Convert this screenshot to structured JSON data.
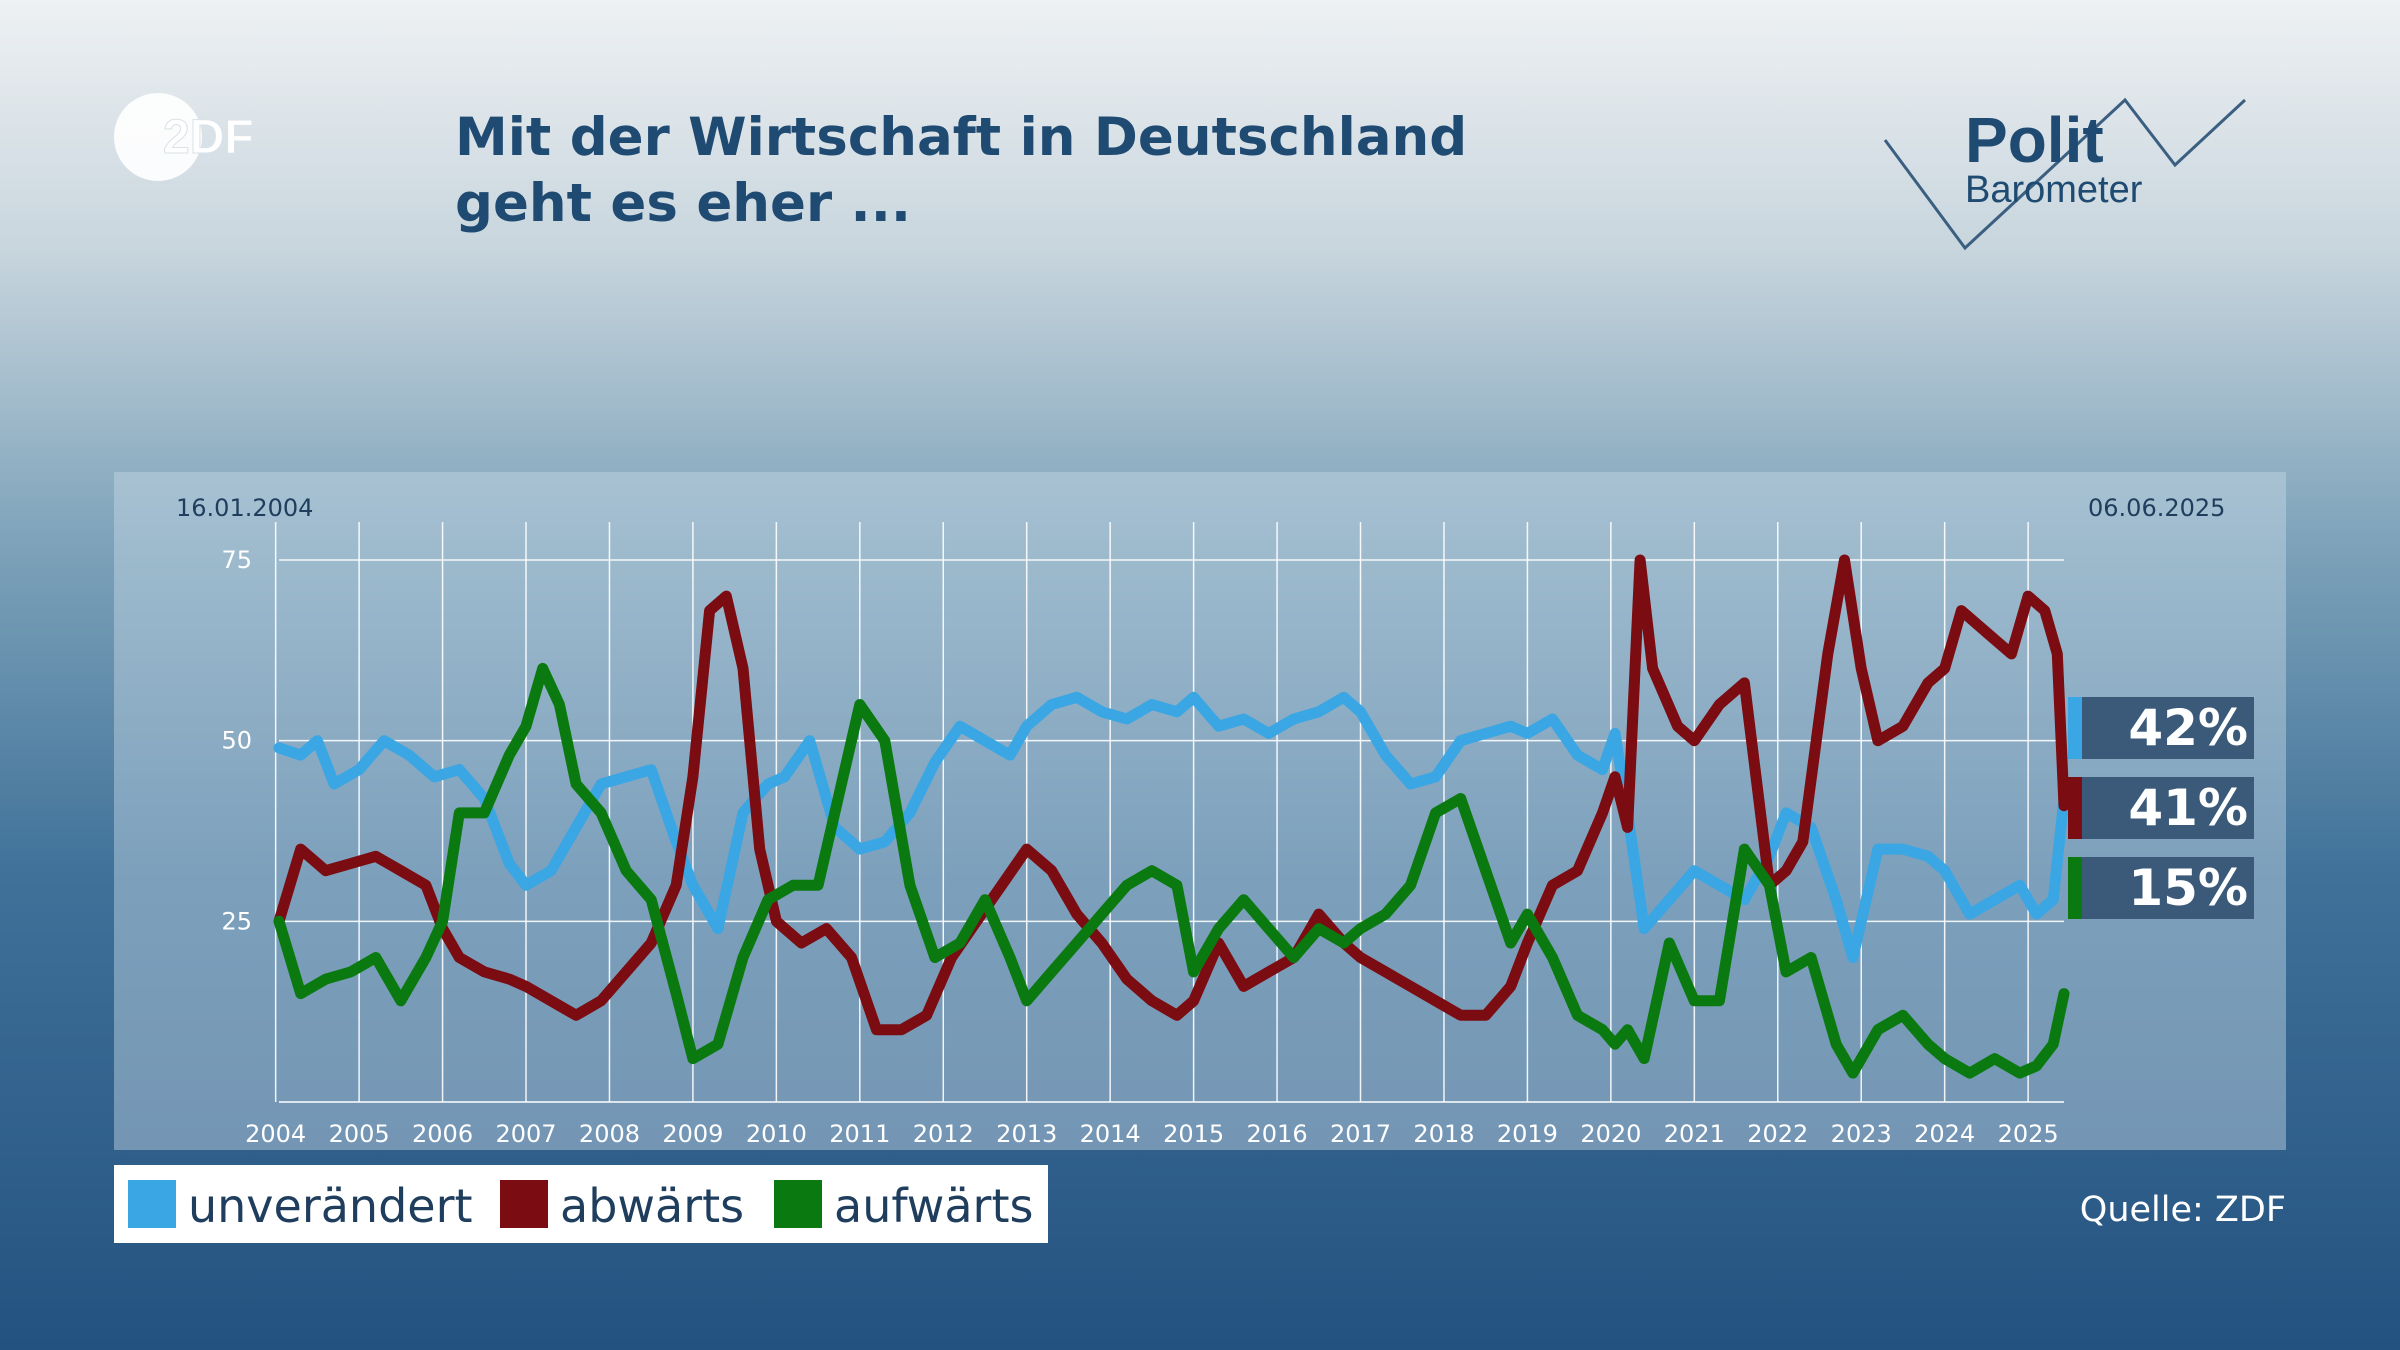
{
  "logo_text": "2DF",
  "title_line1": "Mit der Wirtschaft in Deutschland",
  "title_line2": "geht es eher ...",
  "polit_top": "Polit",
  "polit_bottom": "Barometer",
  "date_start": "16.01.2004",
  "date_end": "06.06.2025",
  "source": "Quelle: ZDF",
  "colors": {
    "unveraendert": "#3aa6e4",
    "abwaerts": "#7a0c12",
    "aufwaerts": "#0a7a10"
  },
  "legend": [
    {
      "label": "unverändert",
      "color": "#3aa6e4"
    },
    {
      "label": "abwärts",
      "color": "#7a0c12"
    },
    {
      "label": "aufwärts",
      "color": "#0a7a10"
    }
  ],
  "current": [
    {
      "label": "42%",
      "color": "#3aa6e4"
    },
    {
      "label": "41%",
      "color": "#7a0c12"
    },
    {
      "label": "15%",
      "color": "#0a7a10"
    }
  ],
  "chart_data": {
    "type": "line",
    "title": "Mit der Wirtschaft in Deutschland geht es eher ...",
    "xlabel": "",
    "ylabel": "",
    "xlim": [
      2004.04,
      2025.43
    ],
    "ylim": [
      0,
      75
    ],
    "yticks": [
      25,
      50,
      75
    ],
    "xticks": [
      "2004",
      "2005",
      "2006",
      "2007",
      "2008",
      "2009",
      "2010",
      "2011",
      "2012",
      "2013",
      "2014",
      "2015",
      "2016",
      "2017",
      "2018",
      "2019",
      "2020",
      "2021",
      "2022",
      "2023",
      "2024",
      "2025"
    ],
    "grid": true,
    "legend_position": "bottom-left",
    "series": [
      {
        "name": "unverändert",
        "color": "#3aa6e4",
        "x": [
          2004.04,
          2004.3,
          2004.5,
          2004.7,
          2005.0,
          2005.3,
          2005.6,
          2005.9,
          2006.2,
          2006.5,
          2006.8,
          2007.0,
          2007.3,
          2007.6,
          2007.9,
          2008.2,
          2008.5,
          2008.8,
          2009.0,
          2009.3,
          2009.6,
          2009.9,
          2010.1,
          2010.4,
          2010.7,
          2011.0,
          2011.3,
          2011.6,
          2011.9,
          2012.2,
          2012.5,
          2012.8,
          2013.0,
          2013.3,
          2013.6,
          2013.9,
          2014.2,
          2014.5,
          2014.8,
          2015.0,
          2015.3,
          2015.6,
          2015.9,
          2016.2,
          2016.5,
          2016.8,
          2017.0,
          2017.3,
          2017.6,
          2017.9,
          2018.2,
          2018.5,
          2018.8,
          2019.0,
          2019.3,
          2019.6,
          2019.9,
          2020.05,
          2020.2,
          2020.4,
          2020.7,
          2021.0,
          2021.3,
          2021.6,
          2021.9,
          2022.1,
          2022.4,
          2022.7,
          2022.9,
          2023.2,
          2023.5,
          2023.8,
          2024.0,
          2024.3,
          2024.6,
          2024.9,
          2025.1,
          2025.3,
          2025.43
        ],
        "y": [
          49,
          48,
          50,
          44,
          46,
          50,
          48,
          45,
          46,
          42,
          33,
          30,
          32,
          38,
          44,
          45,
          46,
          36,
          30,
          24,
          40,
          44,
          45,
          50,
          38,
          35,
          36,
          40,
          47,
          52,
          50,
          48,
          52,
          55,
          56,
          54,
          53,
          55,
          54,
          56,
          52,
          53,
          51,
          53,
          54,
          56,
          54,
          48,
          44,
          45,
          50,
          51,
          52,
          51,
          53,
          48,
          46,
          51,
          40,
          24,
          28,
          32,
          30,
          28,
          34,
          40,
          38,
          28,
          20,
          35,
          35,
          34,
          32,
          26,
          28,
          30,
          26,
          28,
          42
        ]
      },
      {
        "name": "abwärts",
        "color": "#7a0c12",
        "x": [
          2004.04,
          2004.3,
          2004.6,
          2004.9,
          2005.2,
          2005.5,
          2005.8,
          2006.0,
          2006.2,
          2006.5,
          2006.8,
          2007.0,
          2007.3,
          2007.6,
          2007.9,
          2008.2,
          2008.5,
          2008.8,
          2009.0,
          2009.2,
          2009.4,
          2009.6,
          2009.8,
          2010.0,
          2010.3,
          2010.6,
          2010.9,
          2011.2,
          2011.5,
          2011.8,
          2012.1,
          2012.4,
          2012.7,
          2013.0,
          2013.3,
          2013.6,
          2013.9,
          2014.2,
          2014.5,
          2014.8,
          2015.0,
          2015.3,
          2015.6,
          2015.9,
          2016.2,
          2016.5,
          2016.8,
          2017.0,
          2017.3,
          2017.6,
          2017.9,
          2018.2,
          2018.5,
          2018.8,
          2019.0,
          2019.3,
          2019.6,
          2019.9,
          2020.05,
          2020.2,
          2020.35,
          2020.5,
          2020.8,
          2021.0,
          2021.3,
          2021.6,
          2021.9,
          2022.1,
          2022.3,
          2022.6,
          2022.8,
          2023.0,
          2023.2,
          2023.5,
          2023.8,
          2024.0,
          2024.2,
          2024.5,
          2024.8,
          2025.0,
          2025.2,
          2025.35,
          2025.43
        ],
        "y": [
          25,
          35,
          32,
          33,
          34,
          32,
          30,
          24,
          20,
          18,
          17,
          16,
          14,
          12,
          14,
          18,
          22,
          30,
          45,
          68,
          70,
          60,
          35,
          25,
          22,
          24,
          20,
          10,
          10,
          12,
          20,
          25,
          30,
          35,
          32,
          26,
          22,
          17,
          14,
          12,
          14,
          22,
          16,
          18,
          20,
          26,
          22,
          20,
          18,
          16,
          14,
          12,
          12,
          16,
          22,
          30,
          32,
          40,
          45,
          38,
          75,
          60,
          52,
          50,
          55,
          58,
          30,
          32,
          36,
          62,
          75,
          60,
          50,
          52,
          58,
          60,
          68,
          65,
          62,
          70,
          68,
          62,
          41
        ]
      },
      {
        "name": "aufwärts",
        "color": "#0a7a10",
        "x": [
          2004.04,
          2004.3,
          2004.6,
          2004.9,
          2005.2,
          2005.5,
          2005.8,
          2006.0,
          2006.2,
          2006.5,
          2006.8,
          2007.0,
          2007.2,
          2007.4,
          2007.6,
          2007.9,
          2008.2,
          2008.5,
          2008.8,
          2009.0,
          2009.3,
          2009.6,
          2009.9,
          2010.2,
          2010.5,
          2010.8,
          2011.0,
          2011.3,
          2011.6,
          2011.9,
          2012.2,
          2012.5,
          2012.8,
          2013.0,
          2013.3,
          2013.6,
          2013.9,
          2014.2,
          2014.5,
          2014.8,
          2015.0,
          2015.3,
          2015.6,
          2015.9,
          2016.2,
          2016.5,
          2016.8,
          2017.0,
          2017.3,
          2017.6,
          2017.9,
          2018.2,
          2018.5,
          2018.8,
          2019.0,
          2019.3,
          2019.6,
          2019.9,
          2020.05,
          2020.2,
          2020.4,
          2020.7,
          2021.0,
          2021.3,
          2021.6,
          2021.9,
          2022.1,
          2022.4,
          2022.7,
          2022.9,
          2023.2,
          2023.5,
          2023.8,
          2024.0,
          2024.3,
          2024.6,
          2024.9,
          2025.1,
          2025.3,
          2025.43
        ],
        "y": [
          25,
          15,
          17,
          18,
          20,
          14,
          20,
          25,
          40,
          40,
          48,
          52,
          60,
          55,
          44,
          40,
          32,
          28,
          15,
          6,
          8,
          20,
          28,
          30,
          30,
          45,
          55,
          50,
          30,
          20,
          22,
          28,
          20,
          14,
          18,
          22,
          26,
          30,
          32,
          30,
          18,
          24,
          28,
          24,
          20,
          24,
          22,
          24,
          26,
          30,
          40,
          42,
          32,
          22,
          26,
          20,
          12,
          10,
          8,
          10,
          6,
          22,
          14,
          14,
          35,
          30,
          18,
          20,
          8,
          4,
          10,
          12,
          8,
          6,
          4,
          6,
          4,
          5,
          8,
          15
        ]
      }
    ]
  }
}
